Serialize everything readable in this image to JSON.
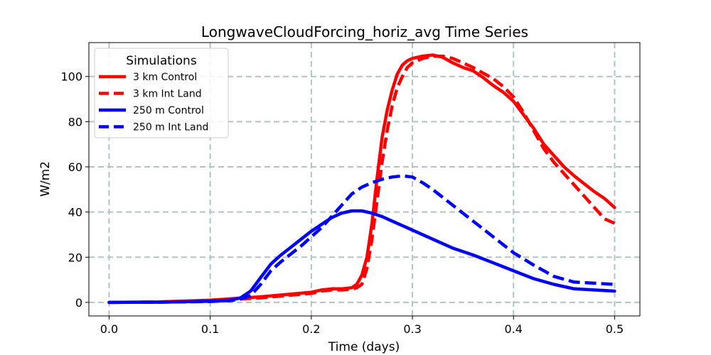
{
  "chart_data": {
    "type": "line",
    "title": "LongwaveCloudForcing_horiz_avg Time Series",
    "xlabel": "Time (days)",
    "ylabel": "W/m2",
    "xlim": [
      -0.02,
      0.525
    ],
    "ylim": [
      -6,
      115
    ],
    "xticks": [
      0.0,
      0.1,
      0.2,
      0.3,
      0.4,
      0.5
    ],
    "xtick_labels": [
      "0.0",
      "0.1",
      "0.2",
      "0.3",
      "0.4",
      "0.5"
    ],
    "yticks": [
      0,
      20,
      40,
      60,
      80,
      100
    ],
    "ytick_labels": [
      "0",
      "20",
      "40",
      "60",
      "80",
      "100"
    ],
    "grid": true,
    "legend": {
      "title": "Simulations",
      "position": "upper-left"
    },
    "series": [
      {
        "name": "3 km Control",
        "color": "#ff0000",
        "dash": "solid",
        "x": [
          0.0,
          0.05,
          0.1,
          0.15,
          0.2,
          0.21,
          0.22,
          0.23,
          0.24,
          0.245,
          0.25,
          0.255,
          0.26,
          0.265,
          0.27,
          0.275,
          0.28,
          0.285,
          0.29,
          0.295,
          0.3,
          0.31,
          0.32,
          0.33,
          0.34,
          0.35,
          0.36,
          0.37,
          0.38,
          0.39,
          0.4,
          0.41,
          0.42,
          0.43,
          0.44,
          0.45,
          0.46,
          0.47,
          0.48,
          0.49,
          0.5
        ],
        "y": [
          0,
          0.2,
          1,
          2.5,
          4.5,
          5.5,
          6,
          6,
          6.5,
          8,
          12,
          20,
          35,
          55,
          73,
          85,
          94,
          101,
          105,
          107,
          108,
          109,
          109.5,
          108.5,
          106,
          104,
          102.5,
          99.5,
          96,
          93,
          89,
          83,
          77,
          70,
          65,
          60,
          56,
          52.5,
          49,
          46,
          42
        ]
      },
      {
        "name": "3 km Int Land",
        "color": "#ff0000",
        "dash": "dashed",
        "x": [
          0.0,
          0.05,
          0.1,
          0.15,
          0.2,
          0.21,
          0.22,
          0.23,
          0.24,
          0.245,
          0.25,
          0.255,
          0.26,
          0.265,
          0.27,
          0.275,
          0.28,
          0.285,
          0.29,
          0.295,
          0.3,
          0.31,
          0.32,
          0.33,
          0.34,
          0.35,
          0.36,
          0.37,
          0.38,
          0.39,
          0.4,
          0.41,
          0.42,
          0.43,
          0.44,
          0.45,
          0.46,
          0.47,
          0.48,
          0.49,
          0.5
        ],
        "y": [
          0,
          0.2,
          0.8,
          2,
          4,
          5,
          5.5,
          5.5,
          5.8,
          6.5,
          8,
          15,
          28,
          45,
          62,
          76,
          87,
          95,
          100,
          104,
          106,
          108,
          109,
          109,
          108,
          106,
          104,
          101.5,
          99,
          95.5,
          91,
          84,
          76,
          68,
          62,
          57,
          52,
          47,
          42,
          37,
          35
        ]
      },
      {
        "name": "250 m Control",
        "color": "#0000ff",
        "dash": "solid",
        "x": [
          0.0,
          0.05,
          0.1,
          0.12,
          0.13,
          0.14,
          0.15,
          0.16,
          0.17,
          0.18,
          0.19,
          0.2,
          0.21,
          0.22,
          0.23,
          0.24,
          0.25,
          0.26,
          0.27,
          0.28,
          0.29,
          0.3,
          0.32,
          0.34,
          0.36,
          0.38,
          0.4,
          0.42,
          0.44,
          0.46,
          0.48,
          0.5
        ],
        "y": [
          0,
          0.1,
          0.5,
          1,
          2,
          5,
          11,
          17,
          21,
          24.5,
          28,
          31.5,
          34.5,
          37.5,
          39.5,
          40.5,
          40.5,
          39.5,
          38,
          36,
          34,
          32,
          28,
          24,
          21,
          17.5,
          14,
          10.5,
          8,
          6,
          5.5,
          5
        ]
      },
      {
        "name": "250 m Int Land",
        "color": "#0000ff",
        "dash": "dashed",
        "x": [
          0.0,
          0.05,
          0.1,
          0.12,
          0.13,
          0.14,
          0.15,
          0.16,
          0.17,
          0.18,
          0.19,
          0.2,
          0.21,
          0.22,
          0.23,
          0.24,
          0.25,
          0.26,
          0.27,
          0.28,
          0.29,
          0.3,
          0.31,
          0.32,
          0.34,
          0.36,
          0.38,
          0.4,
          0.42,
          0.44,
          0.46,
          0.48,
          0.5
        ],
        "y": [
          0,
          0.1,
          0.4,
          0.8,
          1.5,
          3,
          8,
          14,
          18,
          21.5,
          25,
          29,
          33,
          38,
          43,
          48,
          51,
          53,
          54.5,
          55.5,
          56,
          55.5,
          53,
          50,
          43,
          36,
          29,
          22,
          16.5,
          11.5,
          9,
          8.5,
          8
        ]
      }
    ]
  }
}
